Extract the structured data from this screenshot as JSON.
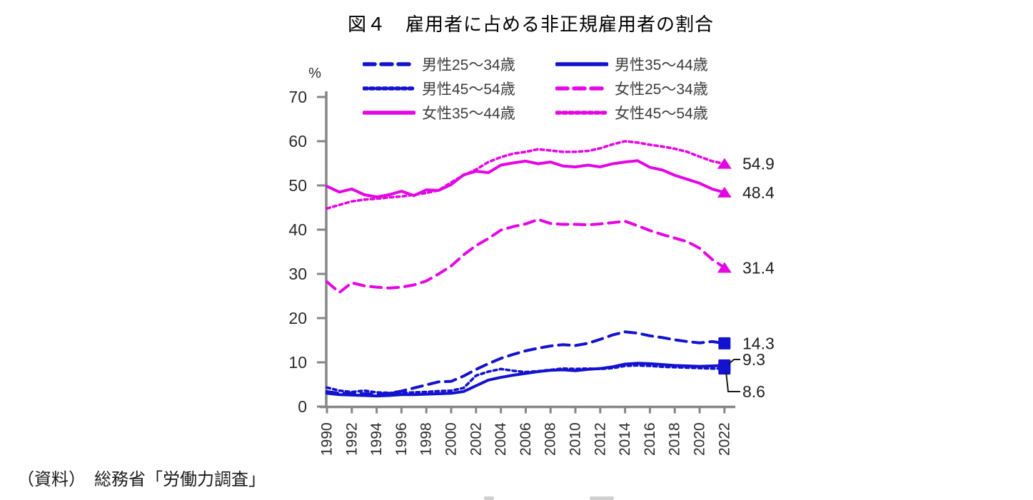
{
  "title": "図４　雇用者に占める非正規雇用者の割合",
  "source": "（資料）　総務省「労働力調査」",
  "percent_label": "%",
  "colors": {
    "male_blue": "#1212D0",
    "female_magenta": "#E404E4",
    "axis_gray": "#868686",
    "tick_text": "#2b2b2b",
    "label_text": "#1f1f1f"
  },
  "chart_data": {
    "type": "line",
    "title": "図４　雇用者に占める非正規雇用者の割合",
    "ylabel": "%",
    "ylim": [
      0,
      70
    ],
    "y_ticks": [
      0,
      10,
      20,
      30,
      40,
      50,
      60,
      70
    ],
    "x": [
      1990,
      1991,
      1992,
      1993,
      1994,
      1995,
      1996,
      1997,
      1998,
      1999,
      2000,
      2001,
      2002,
      2003,
      2004,
      2005,
      2006,
      2007,
      2008,
      2009,
      2010,
      2011,
      2012,
      2013,
      2014,
      2015,
      2016,
      2017,
      2018,
      2019,
      2020,
      2021,
      2022
    ],
    "x_tick_labels": [
      "1990",
      "1992",
      "1994",
      "1996",
      "1998",
      "2000",
      "2002",
      "2004",
      "2006",
      "2008",
      "2010",
      "2012",
      "2014",
      "2016",
      "2018",
      "2020",
      "2022"
    ],
    "grid": false,
    "legend_position": "top",
    "series": [
      {
        "label": "男性25～34歳",
        "color": "#1212D0",
        "dash": "dash",
        "marker": "square",
        "end_label": "14.3",
        "values": [
          3.4,
          3.0,
          3.0,
          2.9,
          2.8,
          3.0,
          3.5,
          4.2,
          4.9,
          5.6,
          5.7,
          6.9,
          8.4,
          9.7,
          10.9,
          11.8,
          12.6,
          13.2,
          13.7,
          14.0,
          13.8,
          14.3,
          15.2,
          16.2,
          16.9,
          16.6,
          16.0,
          15.6,
          15.1,
          14.7,
          14.4,
          14.7,
          14.3
        ]
      },
      {
        "label": "男性35～44歳",
        "color": "#1212D0",
        "dash": "solid",
        "marker": "square",
        "end_label": "9.3",
        "values": [
          3.0,
          2.7,
          2.6,
          2.5,
          2.4,
          2.5,
          2.7,
          2.7,
          2.8,
          2.9,
          3.0,
          3.4,
          4.7,
          6.0,
          6.6,
          7.1,
          7.5,
          7.9,
          8.2,
          8.3,
          8.1,
          8.4,
          8.6,
          9.0,
          9.6,
          9.8,
          9.7,
          9.5,
          9.3,
          9.2,
          9.1,
          9.2,
          9.3
        ]
      },
      {
        "label": "男性45～54歳",
        "color": "#1212D0",
        "dash": "dot",
        "marker": "square",
        "end_label": "8.6",
        "values": [
          4.3,
          3.6,
          3.3,
          3.6,
          3.2,
          3.1,
          3.1,
          3.2,
          3.3,
          3.5,
          3.6,
          4.2,
          7.0,
          7.9,
          8.5,
          8.1,
          7.8,
          8.0,
          8.3,
          8.6,
          8.5,
          8.6,
          8.5,
          8.7,
          9.2,
          9.3,
          9.2,
          9.0,
          8.9,
          8.8,
          8.7,
          8.6,
          8.6
        ]
      },
      {
        "label": "女性25～34歳",
        "color": "#E404E4",
        "dash": "dash",
        "marker": "triangle",
        "end_label": "31.4",
        "values": [
          28.2,
          25.8,
          28.0,
          27.3,
          27.0,
          26.8,
          27.0,
          27.5,
          28.4,
          30.0,
          31.8,
          34.3,
          36.4,
          38.0,
          39.9,
          40.7,
          41.3,
          42.3,
          41.4,
          41.2,
          41.2,
          41.1,
          41.3,
          41.6,
          41.9,
          40.9,
          39.8,
          38.9,
          38.1,
          37.3,
          35.8,
          33.3,
          31.4
        ]
      },
      {
        "label": "女性35～44歳",
        "color": "#E404E4",
        "dash": "solid",
        "marker": "triangle",
        "end_label": "48.4",
        "values": [
          49.8,
          48.5,
          49.2,
          47.9,
          47.4,
          47.9,
          48.7,
          47.7,
          49.0,
          48.9,
          50.2,
          52.4,
          53.2,
          52.9,
          54.6,
          55.1,
          55.5,
          54.9,
          55.3,
          54.4,
          54.2,
          54.6,
          54.2,
          54.9,
          55.3,
          55.6,
          54.1,
          53.5,
          52.3,
          51.4,
          50.5,
          49.2,
          48.4
        ]
      },
      {
        "label": "女性45～54歳",
        "color": "#E404E4",
        "dash": "dot",
        "marker": "triangle",
        "end_label": "54.9",
        "values": [
          44.8,
          45.6,
          46.4,
          46.8,
          47.0,
          47.3,
          47.5,
          47.9,
          48.3,
          48.9,
          50.7,
          52.3,
          53.6,
          55.3,
          56.4,
          57.2,
          57.6,
          58.2,
          57.9,
          57.6,
          57.6,
          57.8,
          58.4,
          59.3,
          60.0,
          59.7,
          59.2,
          58.8,
          58.3,
          57.6,
          56.5,
          55.5,
          54.9
        ]
      }
    ]
  }
}
